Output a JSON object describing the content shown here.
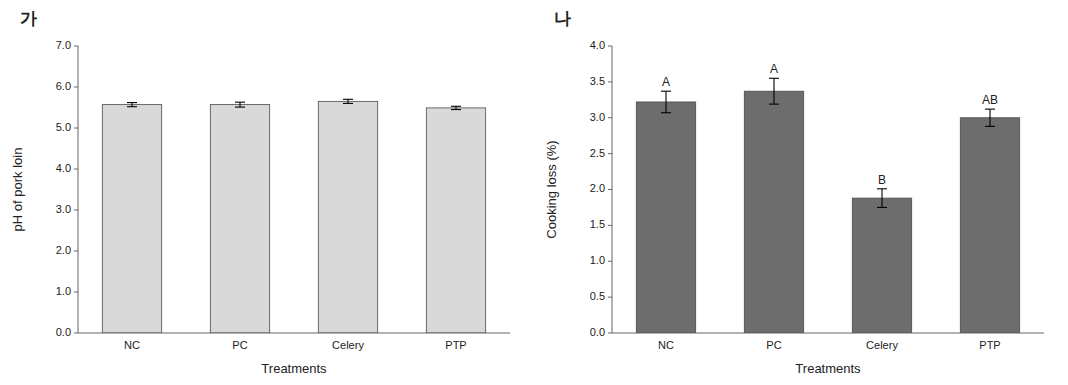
{
  "chart_data": [
    {
      "type": "bar",
      "title": "가",
      "categories": [
        "NC",
        "PC",
        "Celery",
        "PTP"
      ],
      "xlabel": "Treatments",
      "ylabel": "pH of pork loin",
      "values": [
        5.57,
        5.57,
        5.65,
        5.49
      ],
      "errors": [
        0.05,
        0.06,
        0.05,
        0.04
      ],
      "color": "#d9d9d9",
      "ylim": [
        0.0,
        7.0
      ],
      "yticks": [
        {
          "value": 0.0,
          "label": "0.0"
        },
        {
          "value": 1.0,
          "label": "1.0"
        },
        {
          "value": 2.0,
          "label": "2.0"
        },
        {
          "value": 3.0,
          "label": "3.0"
        },
        {
          "value": 4.0,
          "label": "4.0"
        },
        {
          "value": 5.0,
          "label": "5.0"
        },
        {
          "value": 6.0,
          "label": "6.0"
        },
        {
          "value": 7.0,
          "label": "7.0"
        }
      ]
    },
    {
      "type": "bar",
      "title": "나",
      "categories": [
        "NC",
        "PC",
        "Celery",
        "PTP"
      ],
      "xlabel": "Treatments",
      "ylabel": "Cooking loss (%)",
      "values": [
        3.22,
        3.37,
        1.88,
        3.0
      ],
      "errors": [
        0.15,
        0.18,
        0.13,
        0.12
      ],
      "color": "#6d6d6d",
      "ylim": [
        0.0,
        4.0
      ],
      "yticks": [
        {
          "value": 0.0,
          "label": "0.0"
        },
        0.5,
        {
          "value": 1.0,
          "label": "1.0"
        },
        1.5,
        {
          "value": 2.0,
          "label": "2.0"
        },
        2.5,
        {
          "value": 3.0,
          "label": "3.0"
        },
        3.5,
        {
          "value": 4.0,
          "label": "4.0"
        }
      ],
      "annotations": [
        "A",
        "A",
        "B",
        "AB"
      ]
    }
  ]
}
